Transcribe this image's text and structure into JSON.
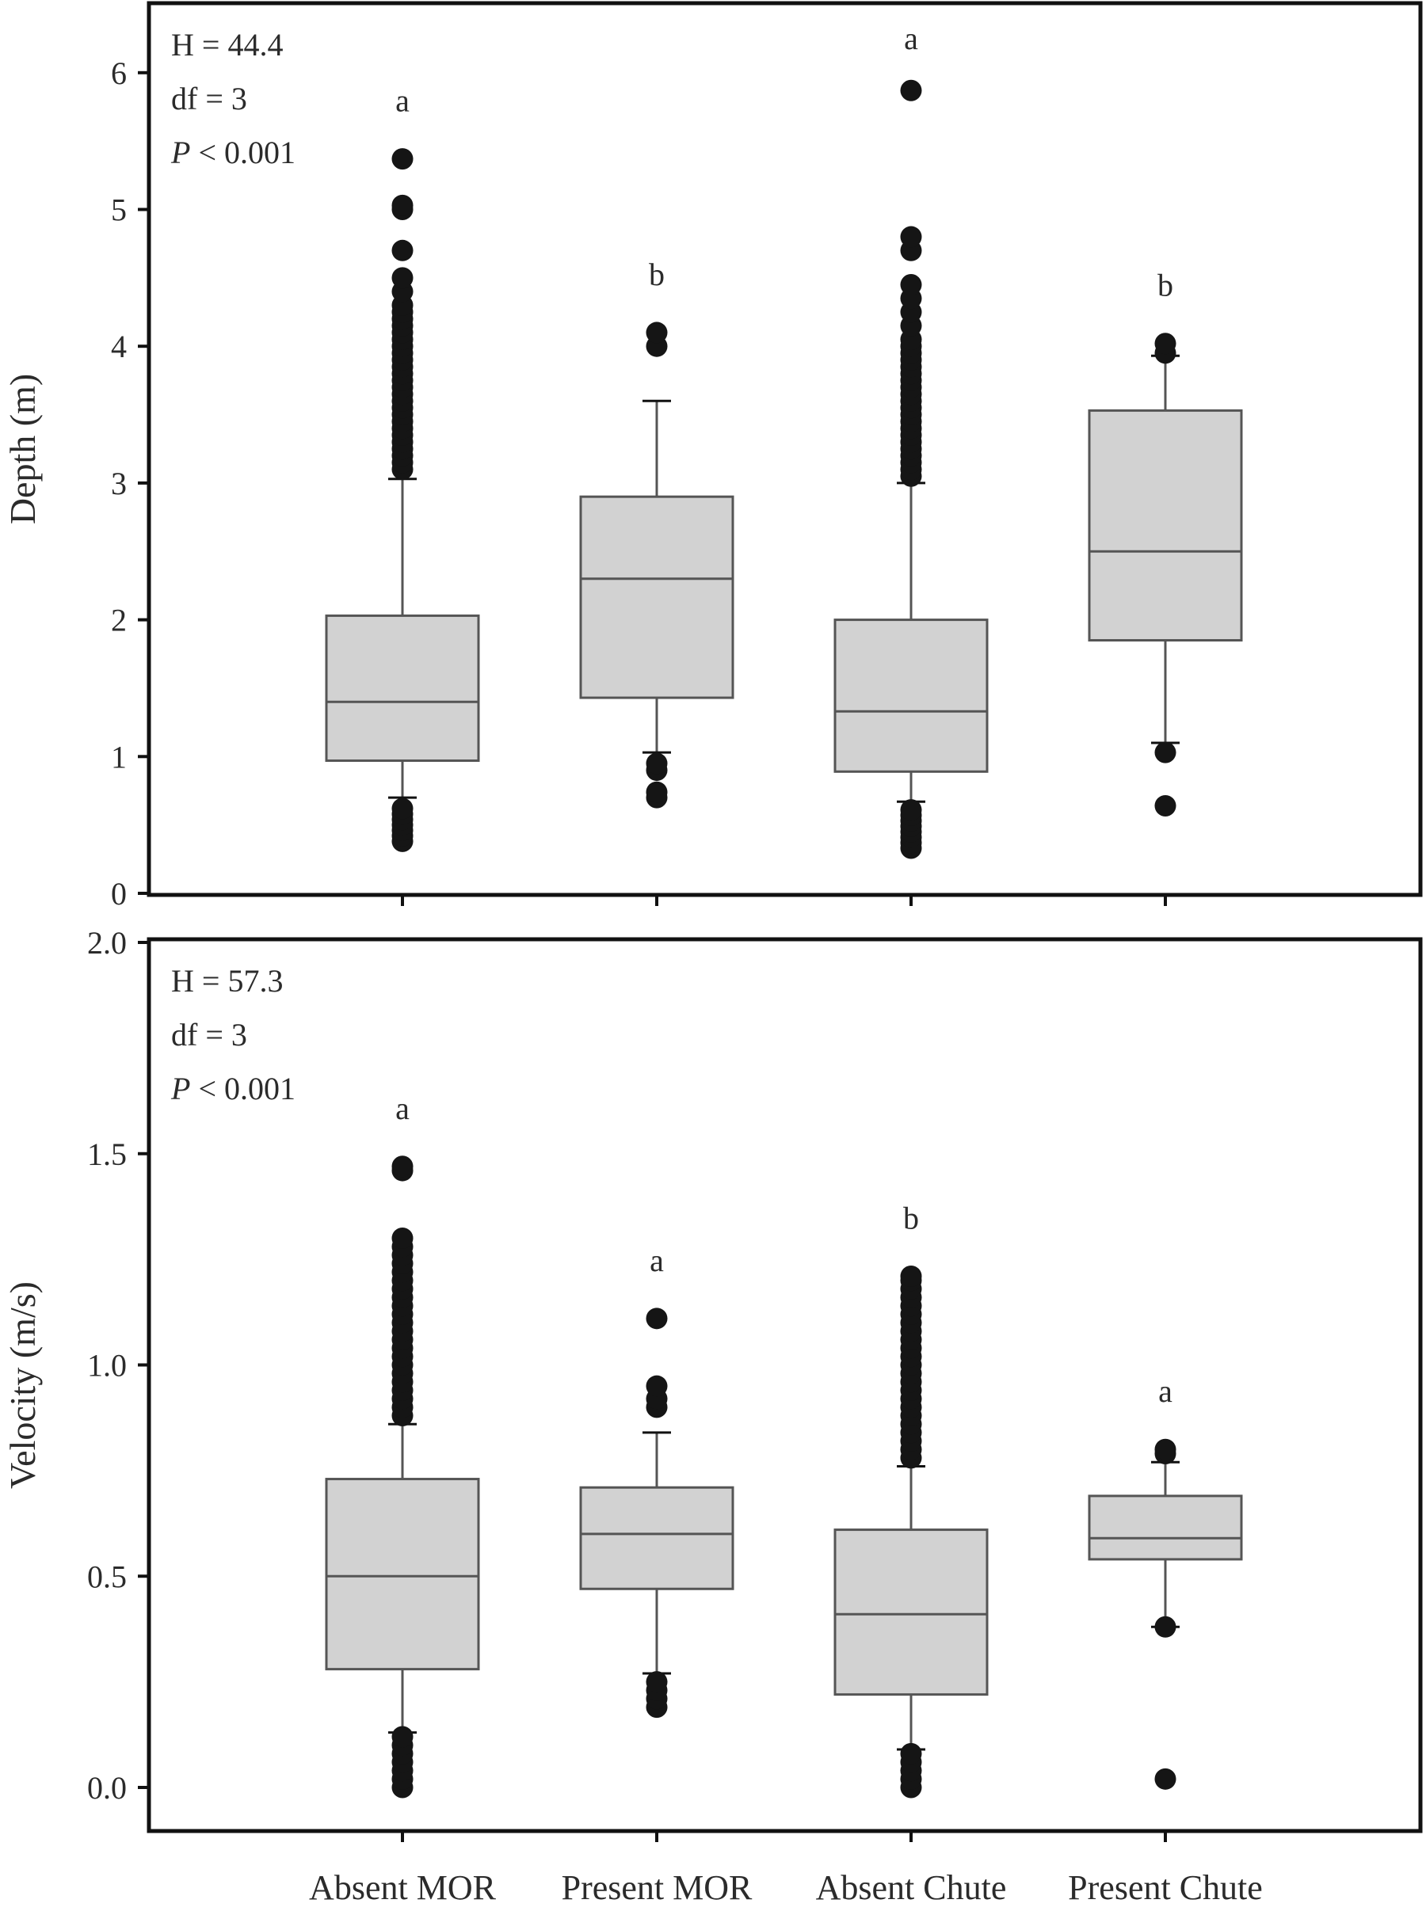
{
  "colors": {
    "box_fill": "#d2d2d2",
    "box_stroke": "#555555",
    "outlier": "#151515",
    "frame": "#111111",
    "text": "#2b2b2b"
  },
  "x_tick_labels": [
    "Absent MOR",
    "Present MOR",
    "Absent Chute",
    "Present Chute"
  ],
  "chart_data": [
    {
      "type": "box",
      "ylabel": "Depth (m)",
      "xlabel": "",
      "ylim": [
        0,
        6.5
      ],
      "yticks": [
        0,
        1,
        2,
        3,
        4,
        5,
        6
      ],
      "ytick_labels": [
        "0",
        "1",
        "2",
        "3",
        "4",
        "5",
        "6"
      ],
      "categories": [
        "Absent MOR",
        "Present MOR",
        "Absent Chute",
        "Present Chute"
      ],
      "stats": {
        "lines": [
          "H = 44.4",
          "df = 3",
          "P < 0.001"
        ],
        "p_italic_letter": "P",
        "p_rest": " < 0.001"
      },
      "boxes": [
        {
          "whisker_low": 0.7,
          "q1": 0.97,
          "median": 1.4,
          "q3": 2.03,
          "whisker_high": 3.03,
          "letter": "a",
          "outliers": [
            0.38,
            0.42,
            0.46,
            0.5,
            0.54,
            0.58,
            0.62,
            3.1,
            3.15,
            3.2,
            3.25,
            3.3,
            3.35,
            3.4,
            3.45,
            3.5,
            3.55,
            3.6,
            3.65,
            3.7,
            3.75,
            3.8,
            3.85,
            3.9,
            3.95,
            4.0,
            4.05,
            4.1,
            4.15,
            4.2,
            4.25,
            4.3,
            4.4,
            4.5,
            4.7,
            5.0,
            5.03,
            5.37
          ]
        },
        {
          "whisker_low": 1.03,
          "q1": 1.43,
          "median": 2.3,
          "q3": 2.9,
          "whisker_high": 3.6,
          "letter": "b",
          "outliers": [
            0.7,
            0.74,
            0.9,
            0.95,
            4.0,
            4.1
          ]
        },
        {
          "whisker_low": 0.67,
          "q1": 0.89,
          "median": 1.33,
          "q3": 2.0,
          "whisker_high": 3.0,
          "letter": "a",
          "outliers": [
            0.33,
            0.37,
            0.41,
            0.45,
            0.49,
            0.53,
            0.57,
            0.61,
            3.05,
            3.1,
            3.15,
            3.2,
            3.25,
            3.3,
            3.35,
            3.4,
            3.45,
            3.5,
            3.55,
            3.6,
            3.65,
            3.7,
            3.75,
            3.8,
            3.85,
            3.9,
            3.95,
            4.0,
            4.05,
            4.15,
            4.25,
            4.35,
            4.45,
            4.7,
            4.8,
            5.87
          ]
        },
        {
          "whisker_low": 1.1,
          "q1": 1.85,
          "median": 2.5,
          "q3": 3.53,
          "whisker_high": 3.93,
          "letter": "b",
          "outliers": [
            0.64,
            1.03,
            3.95,
            4.02
          ]
        }
      ]
    },
    {
      "type": "box",
      "ylabel": "Velocity (m/s)",
      "xlabel": "",
      "ylim": [
        -0.1,
        2.0
      ],
      "yticks": [
        0.0,
        0.5,
        1.0,
        1.5,
        2.0
      ],
      "ytick_labels": [
        "0.0",
        "0.5",
        "1.0",
        "1.5",
        "2.0"
      ],
      "categories": [
        "Absent MOR",
        "Present MOR",
        "Absent Chute",
        "Present Chute"
      ],
      "stats": {
        "lines": [
          "H = 57.3",
          "df = 3",
          "P < 0.001"
        ],
        "p_italic_letter": "P",
        "p_rest": " < 0.001"
      },
      "boxes": [
        {
          "whisker_low": 0.13,
          "q1": 0.28,
          "median": 0.5,
          "q3": 0.73,
          "whisker_high": 0.86,
          "letter": "a",
          "outliers": [
            0.0,
            0.02,
            0.04,
            0.06,
            0.08,
            0.1,
            0.12,
            0.88,
            0.9,
            0.92,
            0.94,
            0.96,
            0.98,
            1.0,
            1.02,
            1.04,
            1.06,
            1.08,
            1.1,
            1.12,
            1.14,
            1.16,
            1.18,
            1.2,
            1.22,
            1.24,
            1.26,
            1.28,
            1.3,
            1.46,
            1.47
          ]
        },
        {
          "whisker_low": 0.27,
          "q1": 0.47,
          "median": 0.6,
          "q3": 0.71,
          "whisker_high": 0.84,
          "letter": "a",
          "outliers": [
            0.19,
            0.21,
            0.23,
            0.25,
            0.9,
            0.92,
            0.95,
            1.11
          ]
        },
        {
          "whisker_low": 0.09,
          "q1": 0.22,
          "median": 0.41,
          "q3": 0.61,
          "whisker_high": 0.76,
          "letter": "b",
          "outliers": [
            0.0,
            0.02,
            0.04,
            0.06,
            0.08,
            0.78,
            0.8,
            0.82,
            0.84,
            0.86,
            0.88,
            0.9,
            0.92,
            0.94,
            0.96,
            0.98,
            1.0,
            1.02,
            1.04,
            1.06,
            1.08,
            1.1,
            1.12,
            1.14,
            1.16,
            1.18,
            1.2,
            1.21
          ]
        },
        {
          "whisker_low": 0.38,
          "q1": 0.54,
          "median": 0.59,
          "q3": 0.69,
          "whisker_high": 0.77,
          "letter": "a",
          "outliers": [
            0.02,
            0.38,
            0.79,
            0.8
          ]
        }
      ]
    }
  ]
}
